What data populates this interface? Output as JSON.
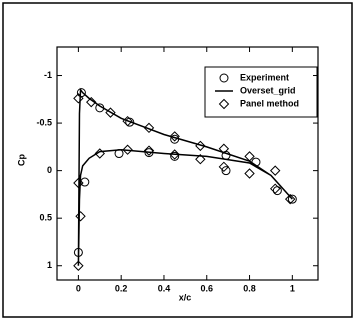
{
  "chart_data": {
    "type": "scatter-line",
    "x_label": "x/c",
    "y_label": "Cp",
    "xlim": [
      -0.1,
      1.12
    ],
    "ylim": [
      1.15,
      -1.3
    ],
    "xticks": [
      0,
      0.2,
      0.4,
      0.6,
      0.8,
      1
    ],
    "yticks": [
      -1,
      -0.5,
      0,
      0.5,
      1
    ],
    "legend": "upper right",
    "series": [
      {
        "name": "Experiment",
        "style": "circle",
        "color": "#000000",
        "x": [
          0.014,
          0.1,
          0.24,
          0.45,
          0.69,
          0.83,
          0.0,
          0.03,
          0.19,
          0.33,
          0.45,
          0.69,
          0.93,
          1.0
        ],
        "y": [
          -0.82,
          -0.66,
          -0.51,
          -0.33,
          -0.16,
          -0.09,
          0.86,
          0.12,
          -0.18,
          -0.19,
          -0.15,
          0.0,
          0.21,
          0.3
        ]
      },
      {
        "name": "Overset_grid",
        "style": "line",
        "color": "#000000",
        "x": [
          1,
          0.9,
          0.8,
          0.6,
          0.4,
          0.2,
          0.1,
          0.05,
          0.02,
          0.01,
          0.005,
          0,
          0.005,
          0.01,
          0.02,
          0.05,
          0.1,
          0.2,
          0.3,
          0.4,
          0.6,
          0.8,
          0.9,
          1
        ],
        "y": [
          0.3,
          0.05,
          -0.1,
          -0.25,
          -0.38,
          -0.55,
          -0.68,
          -0.76,
          -0.82,
          -0.85,
          -0.6,
          1.0,
          0.3,
          0.05,
          -0.05,
          -0.13,
          -0.2,
          -0.22,
          -0.2,
          -0.18,
          -0.15,
          -0.08,
          0.05,
          0.3
        ]
      },
      {
        "name": "Panel method",
        "style": "diamond",
        "color": "#000000",
        "x": [
          0.0,
          0.06,
          0.15,
          0.23,
          0.33,
          0.45,
          0.57,
          0.68,
          0.8,
          0.92,
          0.0,
          0.01,
          0.0,
          0.1,
          0.23,
          0.33,
          0.45,
          0.57,
          0.68,
          0.8,
          0.92,
          0.99
        ],
        "y": [
          -0.76,
          -0.72,
          -0.61,
          -0.52,
          -0.45,
          -0.36,
          -0.26,
          -0.23,
          -0.15,
          0.0,
          0.13,
          0.48,
          1.0,
          -0.18,
          -0.22,
          -0.21,
          -0.17,
          -0.12,
          -0.04,
          0.03,
          0.19,
          0.3
        ]
      }
    ]
  }
}
